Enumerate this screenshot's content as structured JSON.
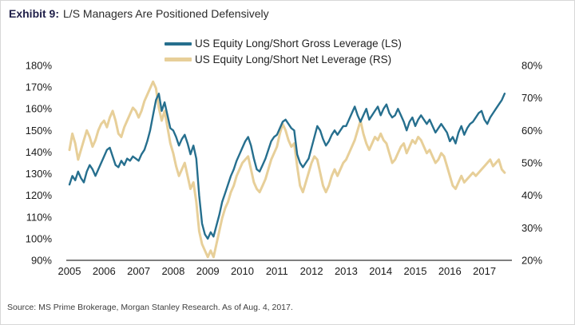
{
  "title": {
    "prefix": "Exhibit 9:",
    "text": "L/S Managers Are Positioned Defensively"
  },
  "source": "Source: MS Prime Brokerage, Morgan Stanley Research. As of Aug. 4, 2017.",
  "colors": {
    "gross_line": "#266f8e",
    "net_line": "#e7cf99",
    "axis_line": "#333333",
    "title_prefix": "#20204a"
  },
  "chart_data": {
    "type": "line",
    "title": "Exhibit 9: L/S Managers Are Positioned Defensively",
    "x_start_year": 2005,
    "x_end_label": "Aug 2017",
    "points_per_year": 12,
    "grid": false,
    "legend_position": "top-center",
    "left_axis": {
      "min": 90,
      "max": 180,
      "unit": "%",
      "ticks": [
        180,
        170,
        160,
        150,
        140,
        130,
        120,
        110,
        100,
        90
      ]
    },
    "right_axis": {
      "min": 20,
      "max": 80,
      "unit": "%",
      "ticks": [
        80,
        70,
        60,
        50,
        40,
        30,
        20
      ]
    },
    "x_axis": {
      "ticks": [
        2005,
        2006,
        2007,
        2008,
        2009,
        2010,
        2011,
        2012,
        2013,
        2014,
        2015,
        2016,
        2017
      ]
    },
    "series": [
      {
        "name": "US Equity Long/Short Gross Leverage (LS)",
        "axis": "left",
        "color": "#266f8e",
        "stroke_width": 2.4,
        "values": [
          125,
          129,
          127,
          131,
          128,
          126,
          131,
          134,
          132,
          129,
          132,
          135,
          138,
          141,
          142,
          138,
          134,
          133,
          136,
          134,
          137,
          136,
          138,
          137,
          136,
          139,
          141,
          145,
          150,
          157,
          164,
          167,
          159,
          163,
          157,
          151,
          150,
          147,
          143,
          146,
          148,
          144,
          139,
          143,
          137,
          120,
          107,
          102,
          100,
          103,
          101,
          106,
          111,
          117,
          121,
          125,
          129,
          132,
          136,
          139,
          142,
          145,
          147,
          143,
          137,
          132,
          131,
          134,
          137,
          141,
          145,
          147,
          148,
          151,
          154,
          155,
          153,
          151,
          150,
          139,
          135,
          133,
          135,
          137,
          142,
          147,
          152,
          150,
          146,
          143,
          145,
          148,
          150,
          148,
          150,
          152,
          152,
          155,
          158,
          161,
          157,
          154,
          157,
          160,
          155,
          157,
          159,
          161,
          157,
          160,
          162,
          158,
          156,
          157,
          160,
          157,
          154,
          150,
          154,
          156,
          152,
          155,
          157,
          155,
          153,
          155,
          152,
          149,
          151,
          153,
          151,
          149,
          145,
          147,
          144,
          149,
          152,
          148,
          151,
          153,
          154,
          156,
          158,
          159,
          155,
          153,
          156,
          158,
          160,
          162,
          164,
          167
        ]
      },
      {
        "name": "US Equity Long/Short Net Leverage (RS)",
        "axis": "right",
        "color": "#e7cf99",
        "stroke_width": 3,
        "values": [
          54,
          59,
          56,
          51,
          54,
          57,
          60,
          58,
          55,
          57,
          60,
          62,
          63,
          61,
          64,
          66,
          63,
          59,
          58,
          61,
          63,
          65,
          67,
          66,
          64,
          66,
          69,
          71,
          73,
          75,
          73,
          67,
          63,
          66,
          61,
          56,
          53,
          49,
          46,
          48,
          50,
          46,
          42,
          44,
          38,
          29,
          25,
          23,
          21,
          23,
          21,
          25,
          29,
          33,
          36,
          38,
          41,
          43,
          46,
          48,
          50,
          51,
          52,
          48,
          44,
          42,
          41,
          43,
          45,
          48,
          51,
          53,
          55,
          59,
          62,
          60,
          57,
          55,
          56,
          49,
          43,
          41,
          44,
          47,
          50,
          52,
          51,
          47,
          43,
          41,
          43,
          46,
          48,
          46,
          48,
          50,
          51,
          53,
          55,
          57,
          60,
          63,
          59,
          56,
          54,
          56,
          58,
          57,
          59,
          57,
          56,
          53,
          50,
          51,
          53,
          55,
          56,
          53,
          55,
          57,
          56,
          58,
          57,
          55,
          53,
          54,
          52,
          50,
          51,
          53,
          52,
          49,
          46,
          43,
          42,
          44,
          46,
          44,
          45,
          46,
          47,
          46,
          47,
          48,
          49,
          50,
          51,
          49,
          50,
          51,
          48,
          47
        ]
      }
    ]
  }
}
